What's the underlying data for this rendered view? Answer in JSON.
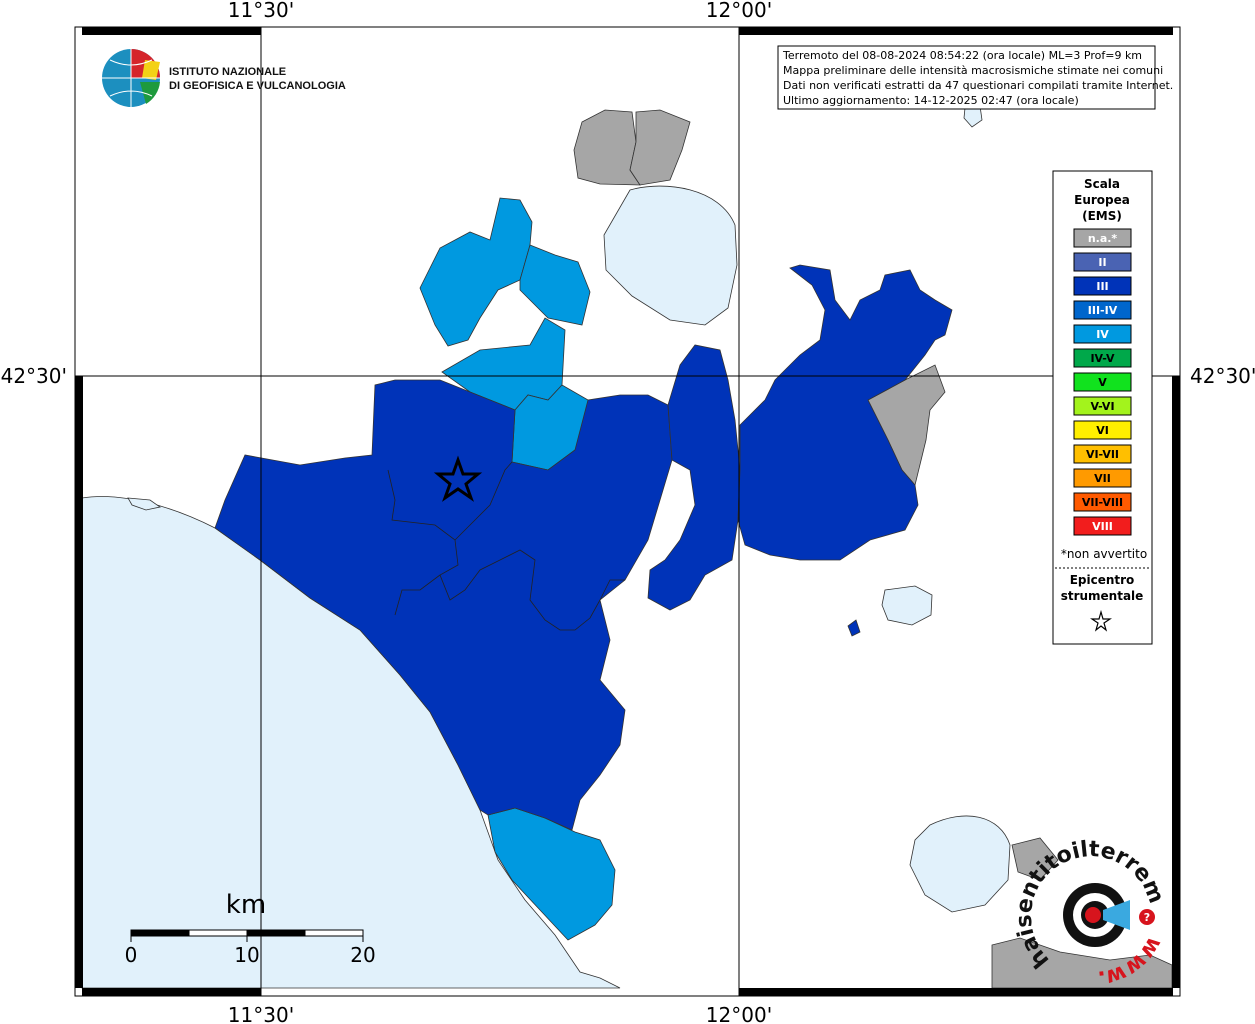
{
  "map": {
    "lon_labels": [
      "11°30'",
      "12°00'"
    ],
    "lat_labels": [
      "42°30'"
    ]
  },
  "logo": {
    "line1": "ISTITUTO NAZIONALE",
    "line2": "DI GEOFISICA E VULCANOLOGIA"
  },
  "info": {
    "line1": "Terremoto del 08-08-2024 08:54:22 (ora locale) ML=3 Prof=9 km",
    "line2": "Mappa preliminare delle intensità macrosismiche stimate nei comuni",
    "line3": "Dati non verificati estratti da 47 questionari compilati tramite Internet.",
    "line4": "Ultimo aggiornamento: 14-12-2025 02:47 (ora locale)"
  },
  "legend": {
    "title1": "Scala",
    "title2": "Europea",
    "title3": "(EMS)",
    "items": [
      {
        "label": "n.a.*",
        "color": "#a6a6a6",
        "text_color": "#ffffff"
      },
      {
        "label": "II",
        "color": "#4a63b3",
        "text_color": "#ffffff"
      },
      {
        "label": "III",
        "color": "#0033b8",
        "text_color": "#ffffff"
      },
      {
        "label": "III-IV",
        "color": "#0066cc",
        "text_color": "#ffffff"
      },
      {
        "label": "IV",
        "color": "#0099e0",
        "text_color": "#ffffff"
      },
      {
        "label": "IV-V",
        "color": "#00a84a",
        "text_color": "#000000"
      },
      {
        "label": "V",
        "color": "#11e21e",
        "text_color": "#000000"
      },
      {
        "label": "V-VI",
        "color": "#a3f31c",
        "text_color": "#000000"
      },
      {
        "label": "VI",
        "color": "#ffef00",
        "text_color": "#000000"
      },
      {
        "label": "VI-VII",
        "color": "#ffbf00",
        "text_color": "#000000"
      },
      {
        "label": "VII",
        "color": "#ff9a00",
        "text_color": "#000000"
      },
      {
        "label": "VII-VIII",
        "color": "#ff5a00",
        "text_color": "#000000"
      },
      {
        "label": "VIII",
        "color": "#f21d1d",
        "text_color": "#ffffff"
      }
    ],
    "note": "*non avvertito",
    "epi1": "Epicentro",
    "epi2": "strumentale",
    "epi_symbol": "star-outline"
  },
  "scale_bar": {
    "unit": "km",
    "labels": [
      "0",
      "10",
      "20"
    ]
  },
  "brand": {
    "text": "haisentitoilterremoto.it",
    "prefix": "www.",
    "color_main": "#111111",
    "color_accent": "#d7141d"
  },
  "colors": {
    "sea": "#e1f1fb",
    "lake": "#e1f1fb",
    "intensity_III": "#0033b8",
    "intensity_IV": "#0099e0",
    "not_available": "#a6a6a6"
  }
}
